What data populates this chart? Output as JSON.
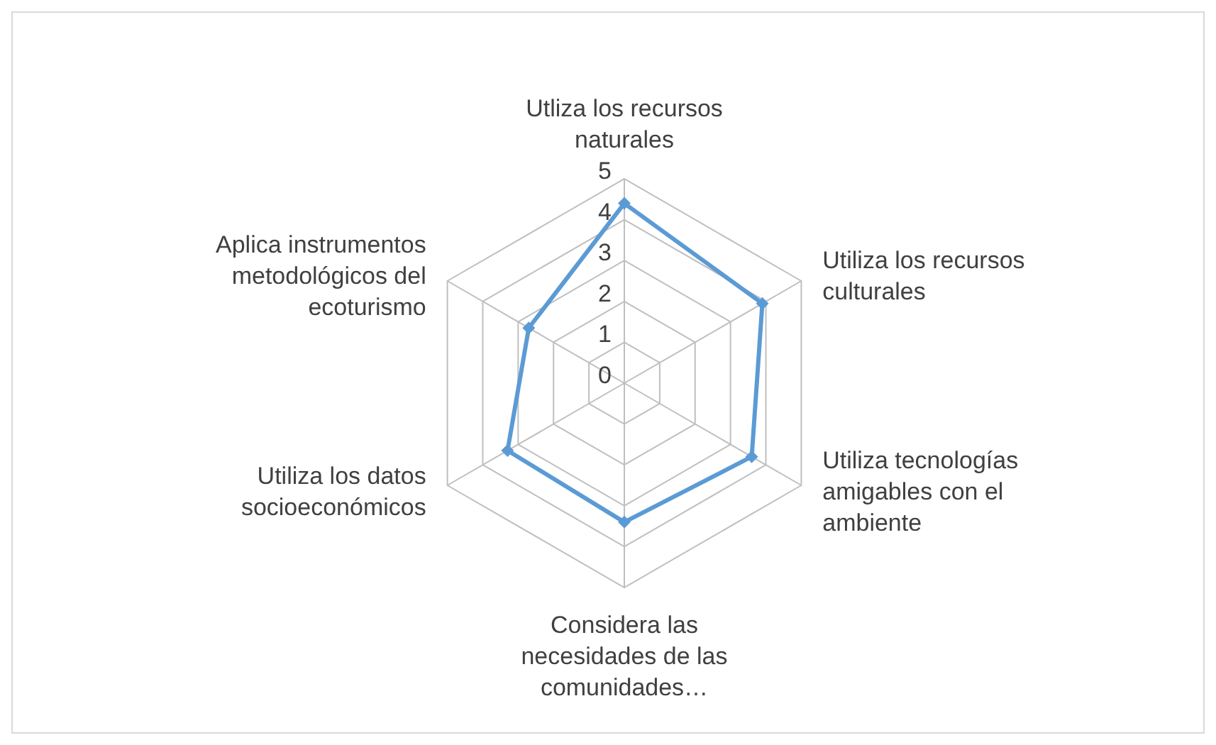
{
  "chart_data": {
    "type": "radar",
    "categories": [
      "Utliza los recursos naturales",
      "Utiliza los recursos culturales",
      "Utiliza tecnologías amigables con el ambiente",
      "Considera las necesidades de las comunidades…",
      "Utiliza los datos socioeconómicos",
      "Aplica instrumentos metodológicos del ecoturismo"
    ],
    "series": [
      {
        "color": "#5b9bd5",
        "values": [
          4.4,
          3.9,
          3.6,
          3.4,
          3.3,
          2.7
        ]
      }
    ],
    "ylim": [
      0,
      5
    ],
    "yticks": [
      0,
      1,
      2,
      3,
      4,
      5
    ],
    "grid": true,
    "legend": false,
    "marker": "diamond",
    "line_style": "solid"
  }
}
